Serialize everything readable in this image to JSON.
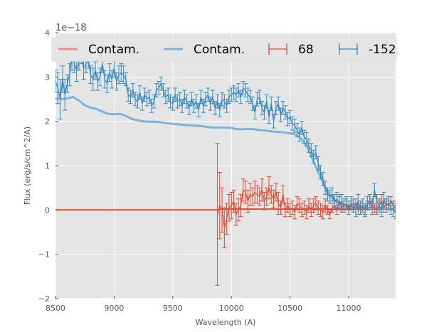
{
  "chart_data": {
    "type": "line",
    "xlabel": "Wavelength (A)",
    "ylabel": "Flux (erg/s/cm^2/A)",
    "y_offset_label": "1e−18",
    "xlim": [
      8500,
      11400
    ],
    "ylim": [
      -2,
      4
    ],
    "xticks": [
      8500,
      9000,
      9500,
      10000,
      10500,
      11000
    ],
    "xtick_labels": [
      "8500",
      "9000",
      "9500",
      "10000",
      "10500",
      "11000"
    ],
    "yticks": [
      -2,
      -1,
      0,
      1,
      2,
      3,
      4
    ],
    "ytick_labels": [
      "−2",
      "−1",
      "0",
      "1",
      "2",
      "3",
      "4"
    ],
    "grid": true,
    "legend_position": "top",
    "colors": {
      "red": "#e24a33",
      "blue": "#348abd",
      "background": "#e5e5e5"
    },
    "legend": [
      {
        "label": "Contam.",
        "kind": "line",
        "color": "#e8907f"
      },
      {
        "label": "Contam.",
        "kind": "line",
        "color": "#7fb2d5"
      },
      {
        "label": "68",
        "kind": "errorbar",
        "color": "#e24a33"
      },
      {
        "label": "-152",
        "kind": "errorbar",
        "color": "#348abd"
      }
    ],
    "series": [
      {
        "name": "Contam. (68)",
        "kind": "line",
        "color": "#e24a33",
        "x": [
          8500,
          9880,
          9900,
          10000,
          10100,
          10500,
          10800,
          11400
        ],
        "y": [
          0,
          0,
          0.02,
          0.02,
          0.02,
          0.02,
          0.02,
          0.02
        ]
      },
      {
        "name": "Contam. (-152)",
        "kind": "line",
        "color": "#7fb2d5",
        "x": [
          8500,
          8550,
          8600,
          8650,
          8700,
          8750,
          8800,
          8850,
          8900,
          8950,
          9000,
          9050,
          9100,
          9150,
          9200,
          9250,
          9300,
          9350,
          9400,
          9450,
          9500,
          9550,
          9600,
          9650,
          9700,
          9750,
          9800,
          9850,
          9900,
          9950,
          10000,
          10050,
          10100,
          10150,
          10200,
          10250,
          10300,
          10350,
          10400,
          10450,
          10500,
          10550,
          10600,
          10650,
          10700,
          10750,
          10800,
          10850,
          10900,
          10950,
          11000,
          11050,
          11100,
          11150,
          11200,
          11250,
          11300,
          11350,
          11400
        ],
        "y": [
          2.52,
          2.5,
          2.52,
          2.55,
          2.47,
          2.36,
          2.31,
          2.28,
          2.22,
          2.17,
          2.16,
          2.17,
          2.12,
          2.06,
          2.02,
          2.0,
          1.99,
          1.99,
          1.98,
          1.96,
          1.94,
          1.93,
          1.92,
          1.91,
          1.9,
          1.89,
          1.87,
          1.86,
          1.86,
          1.86,
          1.85,
          1.82,
          1.82,
          1.83,
          1.82,
          1.8,
          1.79,
          1.77,
          1.76,
          1.75,
          1.73,
          1.7,
          1.6,
          1.4,
          1.1,
          0.8,
          0.5,
          0.3,
          0.17,
          0.1,
          0.08,
          0.06,
          0.05,
          0.04,
          0.04,
          0.03,
          0.03,
          0.03,
          0.03
        ]
      },
      {
        "name": "68",
        "kind": "errorbar",
        "color": "#e24a33",
        "x": [
          9880,
          9900,
          9920,
          9940,
          9960,
          9980,
          10000,
          10020,
          10040,
          10060,
          10080,
          10100,
          10120,
          10140,
          10160,
          10180,
          10200,
          10220,
          10240,
          10260,
          10280,
          10300,
          10320,
          10340,
          10360,
          10380,
          10400,
          10420,
          10440,
          10460,
          10480,
          10500,
          10520,
          10540,
          10560,
          10580,
          10600,
          10620,
          10640,
          10660,
          10680,
          10700,
          10720,
          10740,
          10760,
          10780,
          10800,
          10820,
          10840,
          10860,
          10880,
          10900,
          10920,
          10940,
          10960,
          10980,
          11000,
          11020,
          11040,
          11060,
          11080,
          11100,
          11120,
          11140,
          11160,
          11180,
          11200,
          11220,
          11240,
          11260,
          11280,
          11300,
          11320,
          11340,
          11360,
          11380,
          11400
        ],
        "y": [
          -0.1,
          0.1,
          0.0,
          -0.4,
          -0.2,
          0.05,
          0.1,
          0.2,
          -0.1,
          0.0,
          0.1,
          0.45,
          0.4,
          0.2,
          0.35,
          0.3,
          0.4,
          0.35,
          0.3,
          0.45,
          0.2,
          0.3,
          0.5,
          0.35,
          0.25,
          0.4,
          0.15,
          0.05,
          0.35,
          0.0,
          0.1,
          0.0,
          0.05,
          -0.05,
          0.15,
          0.1,
          0.0,
          0.05,
          -0.05,
          0.1,
          0.0,
          0.1,
          0.15,
          0.05,
          0.0,
          -0.05,
          0.1,
          0.0,
          -0.1,
          0.05,
          0.1,
          0.0,
          0.2,
          0.05,
          0.1,
          0.15,
          0.0,
          0.1,
          0.05,
          0.15,
          0.0,
          0.1,
          0.05,
          0.0,
          0.1,
          0.2,
          0.15,
          0.05,
          0.0,
          0.1,
          0.2,
          0.05,
          0.15,
          0.1,
          0.2,
          0.1,
          0.05
        ],
        "err": [
          1.6,
          0.75,
          0.5,
          0.45,
          0.35,
          0.3,
          0.3,
          0.25,
          0.25,
          0.25,
          0.25,
          0.25,
          0.25,
          0.25,
          0.25,
          0.2,
          0.25,
          0.2,
          0.2,
          0.25,
          0.2,
          0.2,
          0.25,
          0.2,
          0.2,
          0.2,
          0.25,
          0.15,
          0.2,
          0.15,
          0.15,
          0.15,
          0.15,
          0.15,
          0.15,
          0.15,
          0.15,
          0.15,
          0.15,
          0.15,
          0.15,
          0.15,
          0.15,
          0.15,
          0.15,
          0.15,
          0.15,
          0.1,
          0.1,
          0.1,
          0.1,
          0.1,
          0.15,
          0.1,
          0.1,
          0.1,
          0.1,
          0.1,
          0.1,
          0.1,
          0.1,
          0.1,
          0.1,
          0.1,
          0.1,
          0.15,
          0.1,
          0.1,
          0.1,
          0.1,
          0.15,
          0.1,
          0.1,
          0.1,
          0.1,
          0.1,
          0.1
        ]
      },
      {
        "name": "-152",
        "kind": "errorbar",
        "color": "#348abd",
        "x": [
          8500,
          8520,
          8540,
          8560,
          8580,
          8600,
          8620,
          8640,
          8660,
          8680,
          8700,
          8720,
          8740,
          8760,
          8780,
          8800,
          8820,
          8840,
          8860,
          8880,
          8900,
          8920,
          8940,
          8960,
          8980,
          9000,
          9020,
          9040,
          9060,
          9080,
          9100,
          9120,
          9140,
          9160,
          9180,
          9200,
          9220,
          9240,
          9260,
          9280,
          9300,
          9320,
          9340,
          9360,
          9380,
          9400,
          9420,
          9440,
          9460,
          9480,
          9500,
          9520,
          9540,
          9560,
          9580,
          9600,
          9620,
          9640,
          9660,
          9680,
          9700,
          9720,
          9740,
          9760,
          9780,
          9800,
          9820,
          9840,
          9860,
          9880,
          9900,
          9920,
          9940,
          9960,
          9980,
          10000,
          10020,
          10040,
          10060,
          10080,
          10100,
          10120,
          10140,
          10160,
          10180,
          10200,
          10220,
          10240,
          10260,
          10280,
          10300,
          10320,
          10340,
          10360,
          10380,
          10400,
          10420,
          10440,
          10460,
          10480,
          10500,
          10520,
          10540,
          10560,
          10580,
          10600,
          10620,
          10640,
          10660,
          10680,
          10700,
          10720,
          10740,
          10760,
          10780,
          10800,
          10820,
          10840,
          10860,
          10880,
          10900,
          10920,
          10940,
          10960,
          10980,
          11000,
          11020,
          11040,
          11060,
          11080,
          11100,
          11120,
          11140,
          11160,
          11180,
          11200,
          11220,
          11240,
          11260,
          11280,
          11300,
          11320,
          11340,
          11360,
          11380,
          11400
        ],
        "y": [
          2.9,
          2.75,
          2.5,
          2.95,
          2.6,
          2.85,
          3.05,
          3.45,
          3.3,
          3.15,
          3.35,
          3.5,
          3.2,
          3.3,
          3.4,
          3.05,
          2.95,
          3.15,
          2.9,
          3.0,
          3.3,
          2.95,
          2.85,
          3.1,
          2.95,
          3.2,
          2.9,
          3.05,
          3.1,
          3.05,
          2.95,
          2.6,
          2.55,
          2.7,
          2.5,
          2.45,
          2.65,
          2.4,
          2.6,
          2.5,
          2.55,
          2.35,
          2.45,
          2.7,
          2.75,
          2.85,
          2.7,
          2.55,
          2.6,
          2.45,
          2.4,
          2.6,
          2.45,
          2.5,
          2.35,
          2.55,
          2.45,
          2.3,
          2.5,
          2.35,
          2.45,
          2.25,
          2.55,
          2.35,
          2.5,
          2.6,
          2.4,
          2.55,
          2.3,
          2.45,
          2.25,
          2.5,
          2.45,
          2.35,
          2.55,
          2.6,
          2.65,
          2.6,
          2.7,
          2.55,
          2.75,
          2.7,
          2.6,
          2.55,
          2.4,
          2.2,
          2.5,
          2.55,
          2.3,
          2.2,
          2.45,
          2.1,
          2.4,
          2.0,
          2.3,
          2.4,
          2.15,
          2.3,
          2.2,
          2.05,
          2.1,
          1.95,
          1.9,
          1.8,
          1.7,
          1.85,
          1.65,
          1.6,
          1.45,
          1.35,
          1.2,
          1.3,
          1.05,
          0.85,
          0.7,
          0.5,
          0.35,
          0.3,
          0.35,
          0.2,
          0.25,
          0.15,
          0.2,
          0.1,
          0.15,
          0.05,
          0.15,
          0.1,
          0.0,
          0.2,
          0.05,
          0.1,
          0.0,
          0.15,
          0.2,
          0.05,
          0.45,
          0.2,
          0.1,
          0.0,
          0.25,
          0.1,
          0.15,
          0.05,
          0.0,
          -0.05
        ],
        "err": [
          0.25,
          0.35,
          0.45,
          0.3,
          0.35,
          0.2,
          0.25,
          0.3,
          0.2,
          0.25,
          0.2,
          0.2,
          0.25,
          0.2,
          0.2,
          0.2,
          0.25,
          0.2,
          0.2,
          0.2,
          0.2,
          0.2,
          0.2,
          0.2,
          0.2,
          0.2,
          0.2,
          0.2,
          0.2,
          0.2,
          0.15,
          0.15,
          0.15,
          0.15,
          0.15,
          0.15,
          0.15,
          0.15,
          0.15,
          0.15,
          0.15,
          0.15,
          0.15,
          0.15,
          0.15,
          0.15,
          0.15,
          0.15,
          0.15,
          0.15,
          0.15,
          0.15,
          0.15,
          0.15,
          0.15,
          0.15,
          0.15,
          0.15,
          0.15,
          0.15,
          0.15,
          0.15,
          0.15,
          0.15,
          0.15,
          0.15,
          0.15,
          0.15,
          0.15,
          0.15,
          0.15,
          0.15,
          0.15,
          0.15,
          0.15,
          0.15,
          0.15,
          0.15,
          0.15,
          0.15,
          0.15,
          0.15,
          0.15,
          0.15,
          0.15,
          0.15,
          0.15,
          0.15,
          0.15,
          0.15,
          0.15,
          0.15,
          0.15,
          0.15,
          0.15,
          0.15,
          0.15,
          0.15,
          0.15,
          0.15,
          0.15,
          0.15,
          0.15,
          0.15,
          0.15,
          0.15,
          0.15,
          0.15,
          0.15,
          0.15,
          0.15,
          0.15,
          0.15,
          0.15,
          0.15,
          0.15,
          0.15,
          0.15,
          0.15,
          0.15,
          0.15,
          0.15,
          0.15,
          0.15,
          0.15,
          0.15,
          0.15,
          0.15,
          0.15,
          0.15,
          0.15,
          0.15,
          0.15,
          0.15,
          0.15,
          0.15,
          0.15,
          0.15,
          0.15,
          0.15,
          0.15,
          0.15,
          0.15,
          0.15,
          0.15,
          0.15
        ]
      }
    ]
  }
}
